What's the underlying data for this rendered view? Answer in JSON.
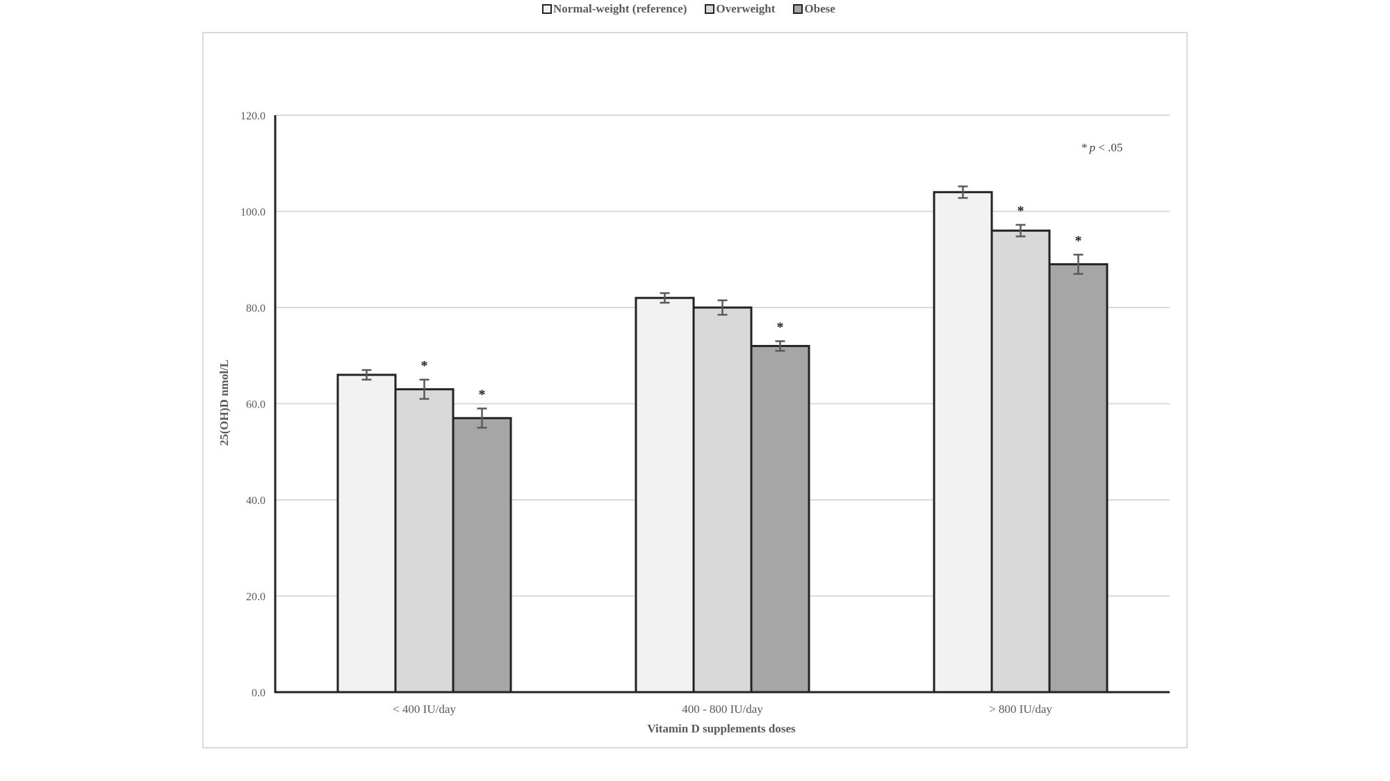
{
  "chart_data": {
    "type": "bar",
    "title": "",
    "xlabel": "Vitamin D supplements doses",
    "ylabel": "25(OH)D nmol/L",
    "ylim": [
      0,
      120
    ],
    "yticks": [
      "0.0",
      "20.0",
      "40.0",
      "60.0",
      "80.0",
      "100.0",
      "120.0"
    ],
    "grid": true,
    "legend_position": "top",
    "categories": [
      "< 400 IU/day",
      "400 - 800 IU/day",
      "> 800 IU/day"
    ],
    "series": [
      {
        "name": "Normal-weight (reference)",
        "color": "#f2f2f2",
        "values": [
          66,
          82,
          104
        ],
        "errors": [
          1.0,
          1.0,
          1.2
        ],
        "significant": [
          false,
          false,
          false
        ]
      },
      {
        "name": "Overweight",
        "color": "#d9d9d9",
        "values": [
          63,
          80,
          96
        ],
        "errors": [
          2.0,
          1.5,
          1.2
        ],
        "significant": [
          true,
          false,
          true
        ]
      },
      {
        "name": "Obese",
        "color": "#a6a6a6",
        "values": [
          57,
          72,
          89
        ],
        "errors": [
          2.0,
          1.0,
          2.0
        ],
        "significant": [
          true,
          true,
          true
        ]
      }
    ],
    "annotations": [
      {
        "text_star": "*",
        "text_p": "p",
        "text_rest": " < .05"
      }
    ],
    "significance_marker": "*"
  },
  "legend": {
    "items": [
      {
        "label": "Normal-weight (reference)",
        "color": "#f2f2f2"
      },
      {
        "label": "Overweight",
        "color": "#d9d9d9"
      },
      {
        "label": "Obese",
        "color": "#a6a6a6"
      }
    ]
  },
  "note": {
    "star": "*",
    "p": "p",
    "rest": " < .05"
  }
}
